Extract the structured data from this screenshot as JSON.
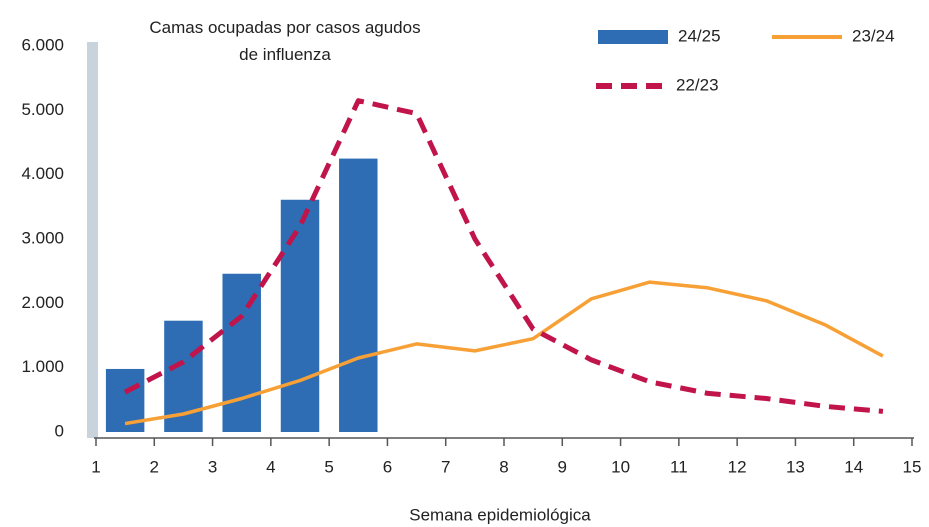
{
  "chart_data": {
    "type": "combo",
    "title": "Camas ocupadas por casos agudos de influenza",
    "x_label": "Semana epidemiológica",
    "xlim": [
      1,
      15
    ],
    "xticks": [
      1,
      2,
      3,
      4,
      5,
      6,
      7,
      8,
      9,
      10,
      11,
      12,
      13,
      14,
      15
    ],
    "ylim": [
      0,
      6000
    ],
    "yticks": [
      0,
      {
        "value": 1000,
        "label": "1.000"
      },
      {
        "value": 2000,
        "label": "2.000"
      },
      {
        "value": 3000,
        "label": "3.000"
      },
      {
        "value": 4000,
        "label": "4.000"
      },
      {
        "value": 5000,
        "label": "5.000"
      },
      {
        "value": 6000,
        "label": "6.000"
      }
    ],
    "grid": false,
    "legend": "top-right",
    "series": [
      {
        "name": "24/25",
        "type": "bar",
        "color": "#2e6db4",
        "x": [
          1.5,
          2.5,
          3.5,
          4.5,
          5.5
        ],
        "values": [
          980,
          1730,
          2460,
          3610,
          4250
        ]
      },
      {
        "name": "23/24",
        "type": "line",
        "color": "#f7a035",
        "x": [
          1.5,
          2.5,
          3.5,
          4.5,
          5.5,
          6.5,
          7.5,
          8.5,
          9.5,
          10.5,
          11.5,
          12.5,
          13.5,
          14.5
        ],
        "values": [
          130,
          280,
          520,
          800,
          1150,
          1370,
          1260,
          1450,
          2070,
          2330,
          2240,
          2040,
          1670,
          1180
        ]
      },
      {
        "name": "22/23",
        "type": "line",
        "dashed": true,
        "color": "#c0144a",
        "x": [
          1.5,
          2.5,
          3.5,
          4.5,
          5.5,
          6.5,
          7.5,
          8.5,
          9.5,
          10.5,
          11.5,
          12.5,
          13.5,
          14.5
        ],
        "values": [
          620,
          1090,
          1800,
          3200,
          5150,
          4950,
          3000,
          1600,
          1120,
          780,
          600,
          520,
          400,
          320
        ]
      }
    ]
  }
}
